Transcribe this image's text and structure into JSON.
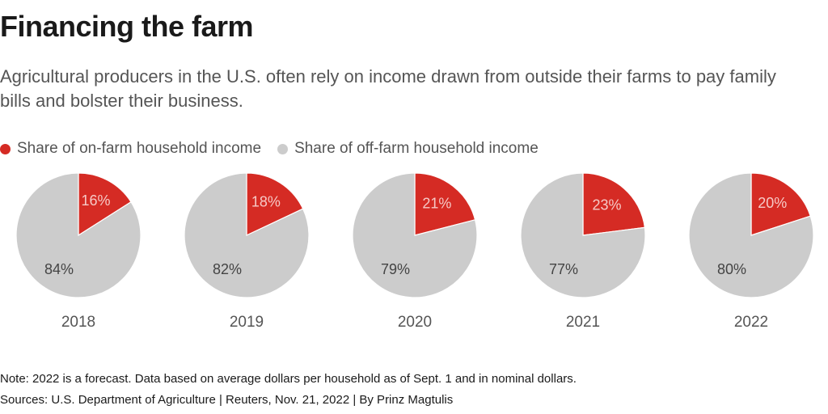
{
  "title": "Financing the farm",
  "subtitle": "Agricultural producers in the U.S. often rely on income drawn from outside their farms to pay family bills and bolster their business.",
  "legend": [
    {
      "label": "Share of on-farm household income",
      "color": "#d52b24"
    },
    {
      "label": "Share of off-farm household income",
      "color": "#cccccc"
    }
  ],
  "note": "Note: 2022 is a forecast. Data based on average dollars per household as of Sept. 1 and in nominal dollars.",
  "sources": "Sources: U.S. Department of Agriculture | Reuters, Nov. 21, 2022 | By Prinz Magtulis",
  "chart_data": {
    "type": "pie",
    "title": "Financing the farm",
    "series_names": [
      "Share of on-farm household income",
      "Share of off-farm household income"
    ],
    "colors": [
      "#d52b24",
      "#cccccc"
    ],
    "pies": [
      {
        "label": "2018",
        "values": [
          16,
          84
        ]
      },
      {
        "label": "2019",
        "values": [
          18,
          82
        ]
      },
      {
        "label": "2020",
        "values": [
          21,
          79
        ]
      },
      {
        "label": "2021",
        "values": [
          23,
          77
        ]
      },
      {
        "label": "2022",
        "values": [
          20,
          80
        ]
      }
    ]
  }
}
